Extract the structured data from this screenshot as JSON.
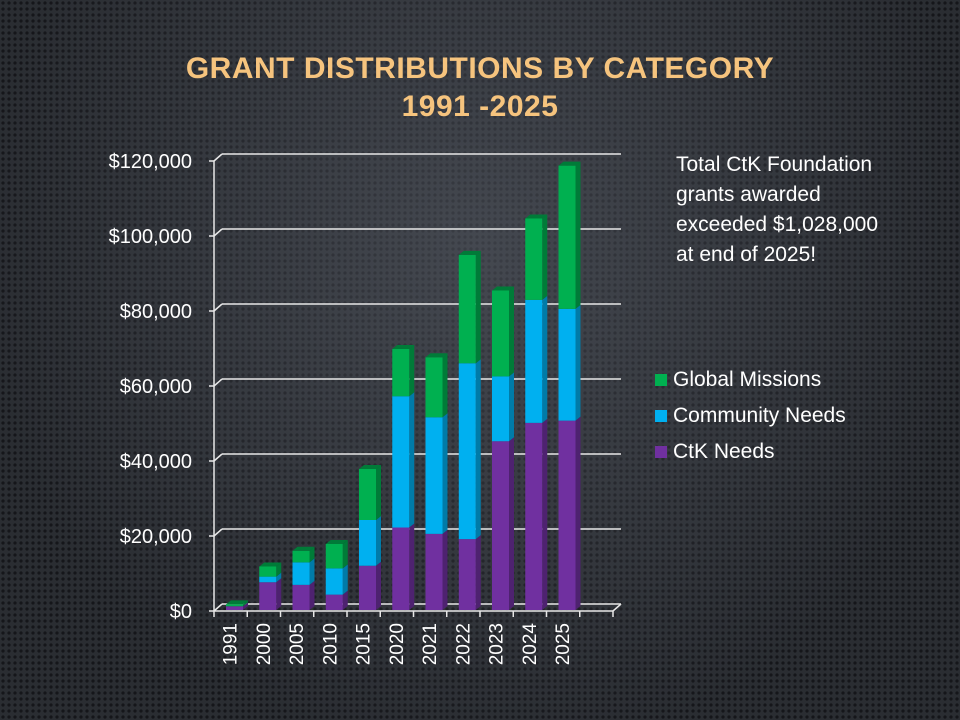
{
  "chart_data": {
    "type": "bar",
    "stacked": true,
    "title": "GRANT DISTRIBUTIONS BY CATEGORY",
    "subtitle": "1991 -2025",
    "categories": [
      "1991",
      "2000",
      "2005",
      "2010",
      "2015",
      "2020",
      "2021",
      "2022",
      "2023",
      "2024",
      "2025"
    ],
    "series": [
      {
        "name": "CtK Needs",
        "color": "#7030a0",
        "values": [
          1000,
          7400,
          6700,
          4100,
          11800,
          22000,
          20300,
          18900,
          45000,
          49900,
          50500
        ]
      },
      {
        "name": "Community Needs",
        "color": "#00b0f0",
        "values": [
          0,
          1500,
          6000,
          7000,
          12200,
          35000,
          31100,
          46900,
          17300,
          32800,
          29800
        ]
      },
      {
        "name": "Global Missions",
        "color": "#00b050",
        "values": [
          500,
          2700,
          3100,
          6500,
          13600,
          12600,
          16000,
          28900,
          22900,
          21700,
          38200
        ]
      }
    ],
    "ylim": [
      0,
      120000
    ],
    "yticks": [
      "$0",
      "$20,000",
      "$40,000",
      "$60,000",
      "$80,000",
      "$100,000",
      "$120,000"
    ],
    "grid": true,
    "legend_placement": "right",
    "annotation": [
      "Total CtK Foundation",
      "grants awarded",
      "exceeded $1,028,000",
      "at end of 2025!"
    ]
  },
  "colors": {
    "title": "#f6c47e"
  }
}
